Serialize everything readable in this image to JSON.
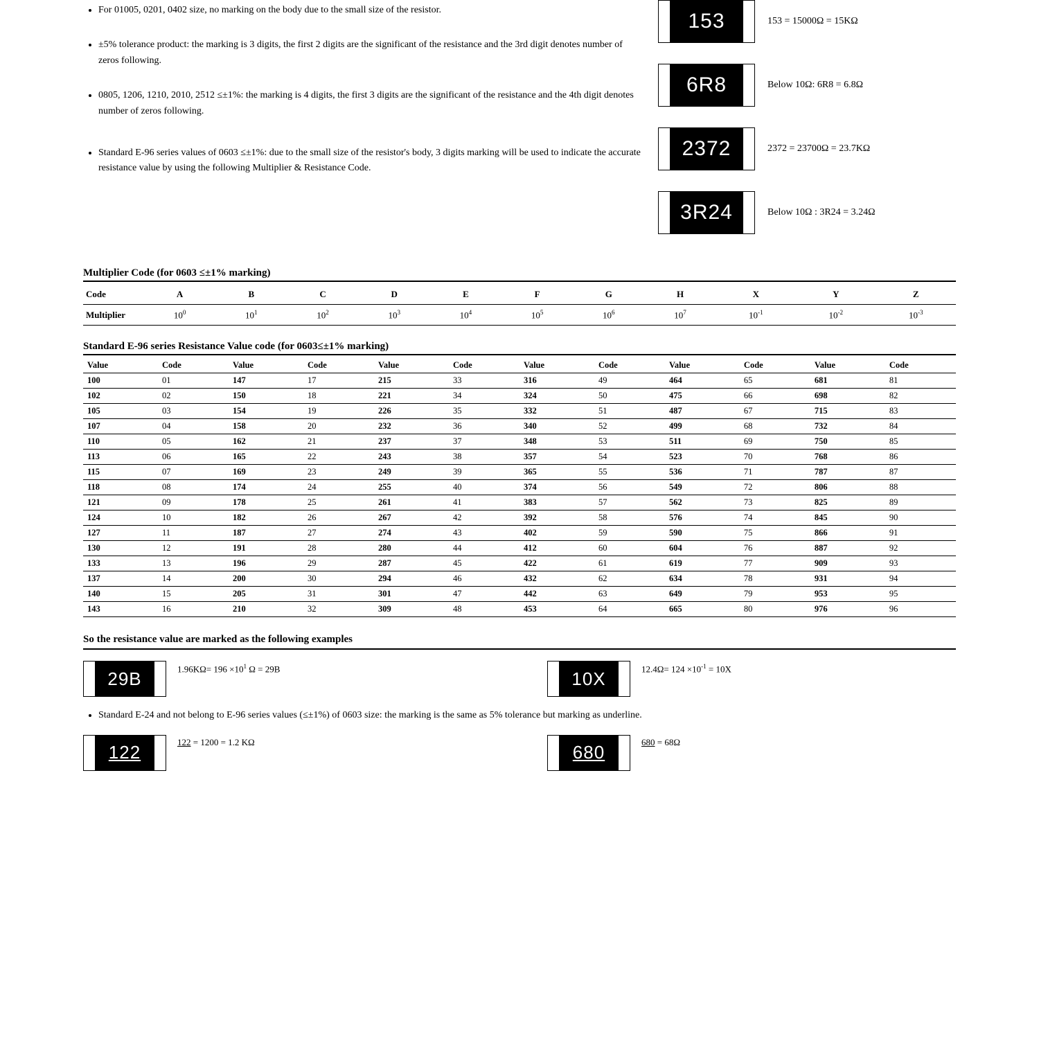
{
  "bullets": [
    "For 01005, 0201, 0402 size, no marking on the body due to the small size of the resistor.",
    "±5% tolerance product: the marking is 3 digits, the first 2 digits are the significant of the resistance and the 3rd digit denotes number of zeros following.",
    "0805, 1206, 1210, 2010, 2512 ≤±1%: the marking is 4 digits, the first 3 digits are the significant of the resistance and the 4th digit denotes number of zeros following.",
    "Standard E-96 series values of 0603 ≤±1%: due to the small size of the resistor's body, 3 digits marking will be used to indicate the accurate resistance value by using the following Multiplier & Resistance Code."
  ],
  "chips": [
    {
      "label": "153",
      "caption": "153 = 15000Ω = 15KΩ"
    },
    {
      "label": "6R8",
      "caption": "Below 10Ω: 6R8 = 6.8Ω"
    },
    {
      "label": "2372",
      "caption": "2372 = 23700Ω = 23.7KΩ"
    },
    {
      "label": "3R24",
      "caption": "Below 10Ω : 3R24 = 3.24Ω"
    }
  ],
  "multiplier": {
    "title": "Multiplier Code (for 0603 ≤±1% marking)",
    "row_labels": [
      "Code",
      "Multiplier"
    ],
    "codes": [
      "A",
      "B",
      "C",
      "D",
      "E",
      "F",
      "G",
      "H",
      "X",
      "Y",
      "Z"
    ],
    "exponents": [
      "0",
      "1",
      "2",
      "3",
      "4",
      "5",
      "6",
      "7",
      "-1",
      "-2",
      "-3"
    ]
  },
  "e96": {
    "title": "Standard E-96 series Resistance Value code (for 0603≤±1% marking)",
    "col_labels": [
      "Value",
      "Code"
    ],
    "pairs": [
      [
        "100",
        "01"
      ],
      [
        "102",
        "02"
      ],
      [
        "105",
        "03"
      ],
      [
        "107",
        "04"
      ],
      [
        "110",
        "05"
      ],
      [
        "113",
        "06"
      ],
      [
        "115",
        "07"
      ],
      [
        "118",
        "08"
      ],
      [
        "121",
        "09"
      ],
      [
        "124",
        "10"
      ],
      [
        "127",
        "11"
      ],
      [
        "130",
        "12"
      ],
      [
        "133",
        "13"
      ],
      [
        "137",
        "14"
      ],
      [
        "140",
        "15"
      ],
      [
        "143",
        "16"
      ],
      [
        "147",
        "17"
      ],
      [
        "150",
        "18"
      ],
      [
        "154",
        "19"
      ],
      [
        "158",
        "20"
      ],
      [
        "162",
        "21"
      ],
      [
        "165",
        "22"
      ],
      [
        "169",
        "23"
      ],
      [
        "174",
        "24"
      ],
      [
        "178",
        "25"
      ],
      [
        "182",
        "26"
      ],
      [
        "187",
        "27"
      ],
      [
        "191",
        "28"
      ],
      [
        "196",
        "29"
      ],
      [
        "200",
        "30"
      ],
      [
        "205",
        "31"
      ],
      [
        "210",
        "32"
      ],
      [
        "215",
        "33"
      ],
      [
        "221",
        "34"
      ],
      [
        "226",
        "35"
      ],
      [
        "232",
        "36"
      ],
      [
        "237",
        "37"
      ],
      [
        "243",
        "38"
      ],
      [
        "249",
        "39"
      ],
      [
        "255",
        "40"
      ],
      [
        "261",
        "41"
      ],
      [
        "267",
        "42"
      ],
      [
        "274",
        "43"
      ],
      [
        "280",
        "44"
      ],
      [
        "287",
        "45"
      ],
      [
        "294",
        "46"
      ],
      [
        "301",
        "47"
      ],
      [
        "309",
        "48"
      ],
      [
        "316",
        "49"
      ],
      [
        "324",
        "50"
      ],
      [
        "332",
        "51"
      ],
      [
        "340",
        "52"
      ],
      [
        "348",
        "53"
      ],
      [
        "357",
        "54"
      ],
      [
        "365",
        "55"
      ],
      [
        "374",
        "56"
      ],
      [
        "383",
        "57"
      ],
      [
        "392",
        "58"
      ],
      [
        "402",
        "59"
      ],
      [
        "412",
        "60"
      ],
      [
        "422",
        "61"
      ],
      [
        "432",
        "62"
      ],
      [
        "442",
        "63"
      ],
      [
        "453",
        "64"
      ],
      [
        "464",
        "65"
      ],
      [
        "475",
        "66"
      ],
      [
        "487",
        "67"
      ],
      [
        "499",
        "68"
      ],
      [
        "511",
        "69"
      ],
      [
        "523",
        "70"
      ],
      [
        "536",
        "71"
      ],
      [
        "549",
        "72"
      ],
      [
        "562",
        "73"
      ],
      [
        "576",
        "74"
      ],
      [
        "590",
        "75"
      ],
      [
        "604",
        "76"
      ],
      [
        "619",
        "77"
      ],
      [
        "634",
        "78"
      ],
      [
        "649",
        "79"
      ],
      [
        "665",
        "80"
      ],
      [
        "681",
        "81"
      ],
      [
        "698",
        "82"
      ],
      [
        "715",
        "83"
      ],
      [
        "732",
        "84"
      ],
      [
        "750",
        "85"
      ],
      [
        "768",
        "86"
      ],
      [
        "787",
        "87"
      ],
      [
        "806",
        "88"
      ],
      [
        "825",
        "89"
      ],
      [
        "845",
        "90"
      ],
      [
        "866",
        "91"
      ],
      [
        "887",
        "92"
      ],
      [
        "909",
        "93"
      ],
      [
        "931",
        "94"
      ],
      [
        "953",
        "95"
      ],
      [
        "976",
        "96"
      ]
    ],
    "groups": 6,
    "rows_per_group": 16
  },
  "examples": {
    "title": "So the resistance value are marked as the following examples",
    "row1": [
      {
        "label": "29B",
        "caption_html": "1.96KΩ= 196 ×10<sup>1</sup> Ω = 29B"
      },
      {
        "label": "10X",
        "caption_html": "12.4Ω= 124 ×10<sup>-1</sup> = 10X"
      }
    ],
    "bullet": "Standard E-24 and not belong to E-96 series values (≤±1%) of 0603 size: the marking is the same as 5% tolerance but marking as underline.",
    "row2": [
      {
        "label": "122",
        "underline": true,
        "caption_html": "<span class=\"underline\">122</span> = 1200 = 1.2 KΩ"
      },
      {
        "label": "680",
        "underline": true,
        "caption_html": "<span class=\"underline\">680</span> = 68Ω"
      }
    ]
  }
}
